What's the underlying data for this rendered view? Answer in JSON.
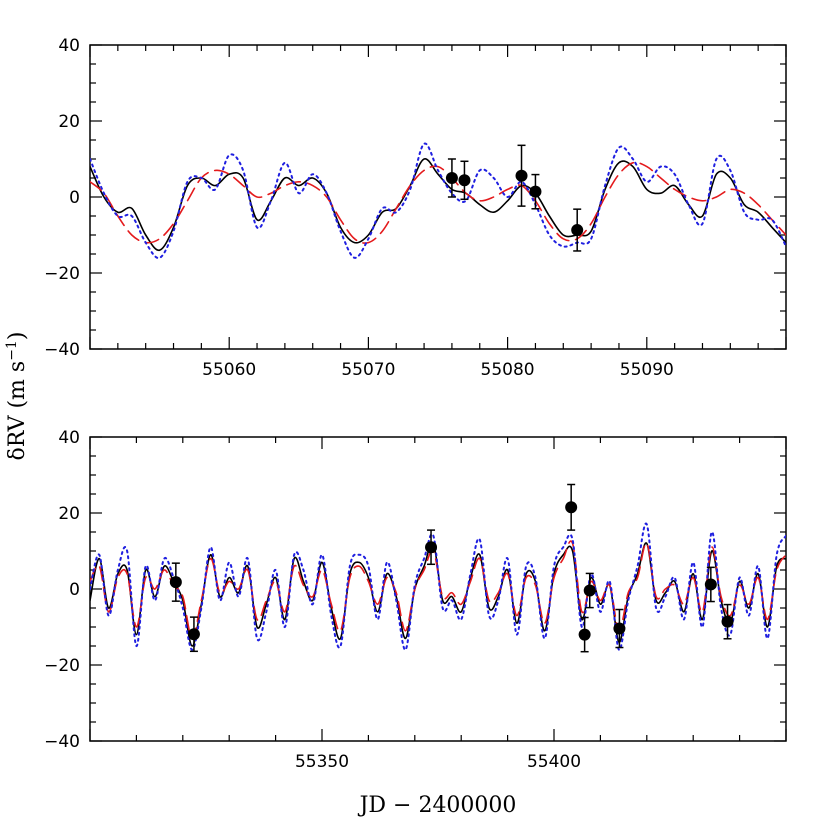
{
  "xlabel": "JD − 2400000",
  "ylabel_main": "δRV  (m s",
  "ylabel_exp": "−1",
  "ylabel_close": ")",
  "colors": {
    "model_solid": "#000000",
    "model_dashed": "#e41a1c",
    "model_dotted": "#1f1fe0",
    "points": "#000000"
  },
  "chart_data": [
    {
      "type": "scatter",
      "panel": "top",
      "xlim": [
        55050,
        55100
      ],
      "ylim": [
        -40,
        40
      ],
      "xticks": [
        55060,
        55070,
        55080,
        55090
      ],
      "yticks": [
        -40,
        -20,
        0,
        20,
        40
      ],
      "xtick_labels": [
        "55060",
        "55070",
        "55080",
        "55090"
      ],
      "ytick_labels": [
        "−40",
        "−20",
        "0",
        "20",
        "40"
      ],
      "points": [
        {
          "x": 55076.0,
          "y": 5.0,
          "err": 5.0
        },
        {
          "x": 55076.9,
          "y": 4.4,
          "err": 5.0
        },
        {
          "x": 55081.0,
          "y": 5.6,
          "err": 8.0
        },
        {
          "x": 55082.0,
          "y": 1.4,
          "err": 4.5
        },
        {
          "x": 55085.0,
          "y": -8.7,
          "err": 5.5
        }
      ],
      "series": [
        {
          "style": "solid",
          "x": [
            55050,
            55051,
            55052,
            55053,
            55054,
            55055,
            55056,
            55057,
            55058,
            55059,
            55060,
            55061,
            55062,
            55063,
            55064,
            55065,
            55066,
            55067,
            55068,
            55069,
            55070,
            55071,
            55072,
            55073,
            55074,
            55075,
            55076,
            55077,
            55078,
            55079,
            55080,
            55081,
            55082,
            55083,
            55084,
            55085,
            55086,
            55087,
            55088,
            55089,
            55090,
            55091,
            55092,
            55093,
            55094,
            55095,
            55096,
            55097,
            55098,
            55099,
            55100
          ],
          "y": [
            8,
            0,
            -4,
            -3,
            -10,
            -14,
            -8,
            3,
            5,
            3,
            6,
            5,
            -6,
            -1,
            5,
            3,
            5,
            1,
            -8,
            -12,
            -10,
            -4,
            -3,
            3,
            10,
            6,
            2,
            1,
            -2,
            -4,
            -1,
            3,
            1,
            -5,
            -10,
            -10,
            -9,
            2,
            9,
            8,
            2,
            1,
            3,
            -2,
            -5,
            6,
            5,
            -2,
            -4,
            -8,
            -12
          ]
        },
        {
          "style": "dashed",
          "x": [
            55050,
            55051,
            55052,
            55053,
            55054,
            55055,
            55056,
            55057,
            55058,
            55059,
            55060,
            55061,
            55062,
            55063,
            55064,
            55065,
            55066,
            55067,
            55068,
            55069,
            55070,
            55071,
            55072,
            55073,
            55074,
            55075,
            55076,
            55077,
            55078,
            55079,
            55080,
            55081,
            55082,
            55083,
            55084,
            55085,
            55086,
            55087,
            55088,
            55089,
            55090,
            55091,
            55092,
            55093,
            55094,
            55095,
            55096,
            55097,
            55098,
            55099,
            55100
          ],
          "y": [
            4,
            1,
            -5,
            -10,
            -12,
            -11,
            -7,
            -1,
            5,
            7,
            6,
            3,
            0,
            1,
            3,
            4,
            3,
            0,
            -6,
            -11,
            -12,
            -9,
            -3,
            3,
            7,
            8,
            5,
            1,
            -1,
            0,
            2,
            3,
            -1,
            -7,
            -11,
            -11,
            -7,
            0,
            6,
            9,
            8,
            5,
            2,
            0,
            -1,
            0,
            2,
            1,
            -2,
            -6,
            -10
          ]
        },
        {
          "style": "dotted",
          "x": [
            55050,
            55051,
            55052,
            55053,
            55054,
            55055,
            55056,
            55057,
            55058,
            55059,
            55060,
            55061,
            55062,
            55063,
            55064,
            55065,
            55066,
            55067,
            55068,
            55069,
            55070,
            55071,
            55072,
            55073,
            55074,
            55075,
            55076,
            55077,
            55078,
            55079,
            55080,
            55081,
            55082,
            55083,
            55084,
            55085,
            55086,
            55087,
            55088,
            55089,
            55090,
            55091,
            55092,
            55093,
            55094,
            55095,
            55096,
            55097,
            55098,
            55099,
            55100
          ],
          "y": [
            10,
            1,
            -5,
            -5,
            -12,
            -16,
            -9,
            4,
            5,
            2,
            11,
            7,
            -8,
            -1,
            9,
            1,
            6,
            1,
            -9,
            -16,
            -11,
            -3,
            -4,
            2,
            14,
            7,
            1,
            -1,
            7,
            5,
            0,
            4,
            -2,
            -10,
            -13,
            -12,
            -11,
            3,
            13,
            10,
            4,
            8,
            6,
            -2,
            -7,
            10,
            7,
            -4,
            -6,
            -6,
            -13
          ]
        }
      ]
    },
    {
      "type": "scatter",
      "panel": "bottom",
      "xlim": [
        55300,
        55450
      ],
      "ylim": [
        -40,
        40
      ],
      "xticks": [
        55350,
        55400
      ],
      "yticks": [
        -40,
        -20,
        0,
        20,
        40
      ],
      "xtick_labels": [
        "55350",
        "55400"
      ],
      "ytick_labels": [
        "−40",
        "−20",
        "0",
        "20",
        "40"
      ],
      "points": [
        {
          "x": 55318.5,
          "y": 1.8,
          "err": 5.0
        },
        {
          "x": 55322.4,
          "y": -11.9,
          "err": 4.5
        },
        {
          "x": 55373.5,
          "y": 11.0,
          "err": 4.5
        },
        {
          "x": 55403.7,
          "y": 21.5,
          "err": 6.0
        },
        {
          "x": 55406.6,
          "y": -12.0,
          "err": 4.5
        },
        {
          "x": 55407.7,
          "y": -0.4,
          "err": 4.5
        },
        {
          "x": 55414.1,
          "y": -10.4,
          "err": 5.0
        },
        {
          "x": 55433.8,
          "y": 1.2,
          "err": 4.5
        },
        {
          "x": 55437.4,
          "y": -8.6,
          "err": 4.5
        }
      ],
      "series": [
        {
          "style": "solid",
          "x": [
            55300,
            55302,
            55304,
            55306,
            55308,
            55310,
            55312,
            55314,
            55316,
            55318,
            55320,
            55322,
            55324,
            55326,
            55328,
            55330,
            55332,
            55334,
            55336,
            55338,
            55340,
            55342,
            55344,
            55346,
            55348,
            55350,
            55352,
            55354,
            55356,
            55358,
            55360,
            55362,
            55364,
            55366,
            55368,
            55370,
            55372,
            55374,
            55376,
            55378,
            55380,
            55382,
            55384,
            55386,
            55388,
            55390,
            55392,
            55394,
            55396,
            55398,
            55400,
            55402,
            55404,
            55406,
            55408,
            55410,
            55412,
            55414,
            55416,
            55418,
            55420,
            55422,
            55424,
            55426,
            55428,
            55430,
            55432,
            55434,
            55436,
            55438,
            55440,
            55442,
            55444,
            55446,
            55448,
            55450
          ],
          "y": [
            -3,
            8,
            -5,
            4,
            5,
            -12,
            5,
            -2,
            6,
            2,
            -3,
            -15,
            -4,
            9,
            -2,
            3,
            -1,
            6,
            -10,
            -4,
            3,
            -8,
            8,
            2,
            -3,
            7,
            -5,
            -13,
            4,
            7,
            3,
            -6,
            4,
            -2,
            -13,
            0,
            6,
            12,
            -3,
            -2,
            -6,
            3,
            9,
            -5,
            -2,
            5,
            -9,
            4,
            2,
            -11,
            4,
            9,
            10,
            -8,
            3,
            -4,
            1,
            -14,
            -2,
            4,
            12,
            -3,
            -1,
            2,
            -6,
            4,
            -8,
            10,
            -3,
            -9,
            2,
            -5,
            4,
            -10,
            6,
            8
          ]
        },
        {
          "style": "dashed",
          "x": [
            55300,
            55302,
            55304,
            55306,
            55308,
            55310,
            55312,
            55314,
            55316,
            55318,
            55320,
            55322,
            55324,
            55326,
            55328,
            55330,
            55332,
            55334,
            55336,
            55338,
            55340,
            55342,
            55344,
            55346,
            55348,
            55350,
            55352,
            55354,
            55356,
            55358,
            55360,
            55362,
            55364,
            55366,
            55368,
            55370,
            55372,
            55374,
            55376,
            55378,
            55380,
            55382,
            55384,
            55386,
            55388,
            55390,
            55392,
            55394,
            55396,
            55398,
            55400,
            55402,
            55404,
            55406,
            55408,
            55410,
            55412,
            55414,
            55416,
            55418,
            55420,
            55422,
            55424,
            55426,
            55428,
            55430,
            55432,
            55434,
            55436,
            55438,
            55440,
            55442,
            55444,
            55446,
            55448,
            55450
          ],
          "y": [
            2,
            6,
            -6,
            3,
            4,
            -10,
            3,
            0,
            5,
            1,
            -2,
            -13,
            -3,
            8,
            -1,
            2,
            0,
            5,
            -8,
            -3,
            2,
            -6,
            6,
            1,
            -2,
            5,
            -4,
            -11,
            3,
            6,
            2,
            -4,
            3,
            -1,
            -11,
            0,
            5,
            10,
            -2,
            -1,
            -4,
            2,
            8,
            -3,
            -1,
            4,
            -7,
            3,
            1,
            -9,
            3,
            8,
            12,
            -6,
            2,
            -3,
            1,
            -11,
            -1,
            3,
            12,
            -2,
            0,
            1,
            -4,
            3,
            -6,
            11,
            -2,
            -7,
            1,
            -4,
            3,
            -8,
            5,
            9
          ]
        },
        {
          "style": "dotted",
          "x": [
            55300,
            55302,
            55304,
            55306,
            55308,
            55310,
            55312,
            55314,
            55316,
            55318,
            55320,
            55322,
            55324,
            55326,
            55328,
            55330,
            55332,
            55334,
            55336,
            55338,
            55340,
            55342,
            55344,
            55346,
            55348,
            55350,
            55352,
            55354,
            55356,
            55358,
            55360,
            55362,
            55364,
            55366,
            55368,
            55370,
            55372,
            55374,
            55376,
            55378,
            55380,
            55382,
            55384,
            55386,
            55388,
            55390,
            55392,
            55394,
            55396,
            55398,
            55400,
            55402,
            55404,
            55406,
            55408,
            55410,
            55412,
            55414,
            55416,
            55418,
            55420,
            55422,
            55424,
            55426,
            55428,
            55430,
            55432,
            55434,
            55436,
            55438,
            55440,
            55442,
            55444,
            55446,
            55448,
            55450
          ],
          "y": [
            0,
            9,
            -7,
            5,
            10,
            -15,
            6,
            -3,
            8,
            3,
            -5,
            -16,
            -5,
            11,
            -3,
            7,
            -2,
            8,
            -13,
            -6,
            5,
            -10,
            9,
            5,
            -4,
            9,
            -7,
            -15,
            6,
            9,
            6,
            -8,
            7,
            -3,
            -16,
            1,
            8,
            14,
            -5,
            -3,
            -8,
            4,
            13,
            -7,
            -3,
            8,
            -12,
            6,
            3,
            -13,
            6,
            11,
            13,
            -10,
            4,
            -6,
            2,
            -16,
            -3,
            6,
            17,
            -5,
            -2,
            3,
            -8,
            7,
            -10,
            15,
            -5,
            -12,
            3,
            -7,
            6,
            -13,
            9,
            14
          ]
        }
      ]
    }
  ]
}
